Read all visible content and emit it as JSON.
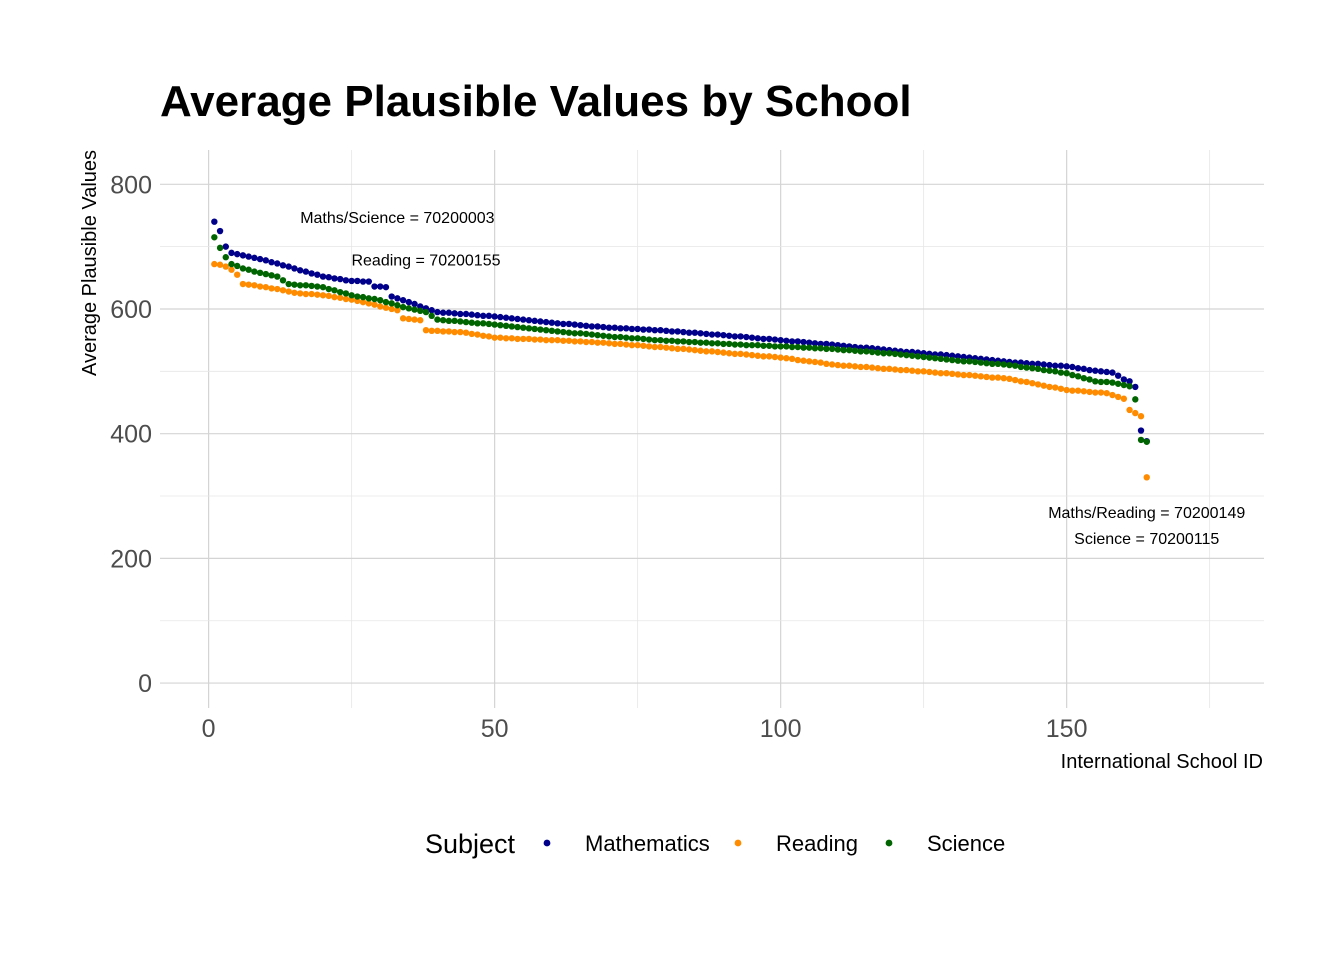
{
  "chart_data": {
    "type": "scatter",
    "title": "Average Plausible Values by School",
    "xlabel": "International School ID",
    "ylabel": "Average Plausible Values",
    "xlim": [
      -8.5,
      184.5
    ],
    "ylim": [
      -40,
      855
    ],
    "x_ticks": [
      0,
      50,
      100,
      150
    ],
    "x_tick_labels": [
      "0",
      "50",
      "100",
      "150"
    ],
    "y_ticks": [
      0,
      200,
      400,
      600,
      800
    ],
    "y_tick_labels": [
      "0",
      "200",
      "400",
      "600",
      "800"
    ],
    "grid": true,
    "legend": {
      "title": "Subject",
      "position": "bottom"
    },
    "annotations": [
      {
        "text": "Maths/Science = 70200003",
        "x": 33,
        "y": 738
      },
      {
        "text": "Reading = 70200155",
        "x": 38,
        "y": 670
      },
      {
        "text": "Maths/Reading = 70200149",
        "x": 164,
        "y": 265
      },
      {
        "text": "Science = 70200115",
        "x": 164,
        "y": 223
      }
    ],
    "series": [
      {
        "name": "Mathematics",
        "color": "#00008b",
        "anchors": [
          [
            1,
            740
          ],
          [
            2,
            725
          ],
          [
            3,
            700
          ],
          [
            4,
            690
          ],
          [
            10,
            678
          ],
          [
            15,
            665
          ],
          [
            20,
            652
          ],
          [
            25,
            645
          ],
          [
            28,
            644
          ],
          [
            29,
            636
          ],
          [
            31,
            635
          ],
          [
            32,
            620
          ],
          [
            40,
            595
          ],
          [
            50,
            588
          ],
          [
            60,
            578
          ],
          [
            70,
            570
          ],
          [
            80,
            565
          ],
          [
            90,
            558
          ],
          [
            100,
            550
          ],
          [
            110,
            542
          ],
          [
            120,
            533
          ],
          [
            130,
            525
          ],
          [
            140,
            515
          ],
          [
            150,
            508
          ],
          [
            155,
            501
          ],
          [
            158,
            498
          ],
          [
            159,
            493
          ],
          [
            160,
            487
          ],
          [
            161,
            484
          ],
          [
            162,
            475
          ],
          [
            163,
            405
          ],
          [
            164,
            388
          ]
        ]
      },
      {
        "name": "Reading",
        "color": "#ff8c00",
        "anchors": [
          [
            1,
            672
          ],
          [
            2,
            671
          ],
          [
            3,
            668
          ],
          [
            4,
            663
          ],
          [
            5,
            655
          ],
          [
            6,
            640
          ],
          [
            10,
            635
          ],
          [
            14,
            628
          ],
          [
            15,
            626
          ],
          [
            20,
            622
          ],
          [
            25,
            615
          ],
          [
            33,
            598
          ],
          [
            34,
            585
          ],
          [
            37,
            582
          ],
          [
            38,
            566
          ],
          [
            45,
            562
          ],
          [
            50,
            554
          ],
          [
            60,
            550
          ],
          [
            70,
            545
          ],
          [
            80,
            538
          ],
          [
            90,
            530
          ],
          [
            100,
            522
          ],
          [
            110,
            510
          ],
          [
            120,
            503
          ],
          [
            130,
            496
          ],
          [
            140,
            488
          ],
          [
            150,
            470
          ],
          [
            157,
            465
          ],
          [
            160,
            456
          ],
          [
            161,
            438
          ],
          [
            162,
            433
          ],
          [
            163,
            428
          ],
          [
            164,
            330
          ]
        ]
      },
      {
        "name": "Science",
        "color": "#006400",
        "anchors": [
          [
            1,
            715
          ],
          [
            2,
            698
          ],
          [
            3,
            683
          ],
          [
            4,
            672
          ],
          [
            6,
            665
          ],
          [
            9,
            658
          ],
          [
            12,
            652
          ],
          [
            14,
            640
          ],
          [
            20,
            635
          ],
          [
            25,
            622
          ],
          [
            30,
            614
          ],
          [
            34,
            603
          ],
          [
            38,
            595
          ],
          [
            40,
            583
          ],
          [
            50,
            575
          ],
          [
            60,
            565
          ],
          [
            70,
            556
          ],
          [
            80,
            549
          ],
          [
            90,
            544
          ],
          [
            100,
            540
          ],
          [
            110,
            535
          ],
          [
            120,
            528
          ],
          [
            130,
            518
          ],
          [
            140,
            510
          ],
          [
            150,
            497
          ],
          [
            155,
            484
          ],
          [
            158,
            482
          ],
          [
            160,
            478
          ],
          [
            161,
            476
          ],
          [
            162,
            455
          ],
          [
            163,
            390
          ],
          [
            164,
            387
          ]
        ]
      }
    ]
  }
}
